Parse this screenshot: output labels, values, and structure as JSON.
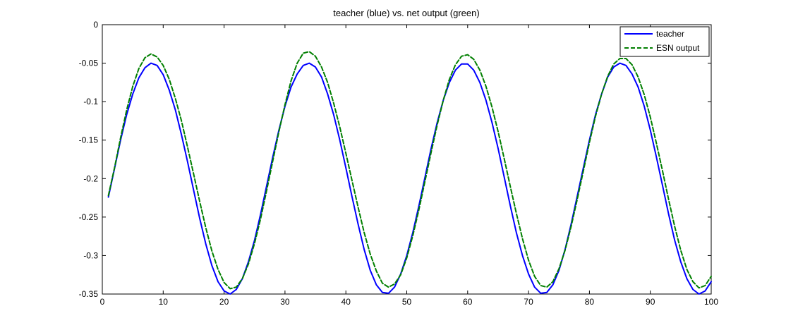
{
  "chart_data": {
    "type": "line",
    "title": "teacher (blue) vs. net output (green)",
    "xlabel": "",
    "ylabel": "",
    "xlim": [
      0,
      100
    ],
    "ylim": [
      -0.35,
      0
    ],
    "xticks": [
      "10",
      "20",
      "30",
      "40",
      "50",
      "60",
      "70",
      "80",
      "90",
      "100"
    ],
    "yticks": [
      "0",
      "-0.05",
      "-0.1",
      "-0.15",
      "-0.2",
      "-0.25",
      "-0.3",
      "-0.35"
    ],
    "x_zero_label": "0",
    "grid": false,
    "legend_position": "top-right",
    "series": [
      {
        "name": "teacher",
        "color": "#0000ff",
        "dash": "solid",
        "x": [
          1,
          2,
          3,
          4,
          5,
          6,
          7,
          8,
          9,
          10,
          11,
          12,
          13,
          14,
          15,
          16,
          17,
          18,
          19,
          20,
          21,
          22,
          23,
          24,
          25,
          26,
          27,
          28,
          29,
          30,
          31,
          32,
          33,
          34,
          35,
          36,
          37,
          38,
          39,
          40,
          41,
          42,
          43,
          44,
          45,
          46,
          47,
          48,
          49,
          50,
          51,
          52,
          53,
          54,
          55,
          56,
          57,
          58,
          59,
          60,
          61,
          62,
          63,
          64,
          65,
          66,
          67,
          68,
          69,
          70,
          71,
          72,
          73,
          74,
          75,
          76,
          77,
          78,
          79,
          80,
          81,
          82,
          83,
          84,
          85,
          86,
          87,
          88,
          89,
          90,
          91,
          92,
          93,
          94,
          95,
          96,
          97,
          98,
          99,
          100
        ],
        "values": [
          -0.224,
          -0.187,
          -0.15,
          -0.117,
          -0.09,
          -0.069,
          -0.056,
          -0.05,
          -0.053,
          -0.065,
          -0.085,
          -0.111,
          -0.143,
          -0.178,
          -0.215,
          -0.252,
          -0.285,
          -0.313,
          -0.334,
          -0.346,
          -0.35,
          -0.344,
          -0.33,
          -0.308,
          -0.28,
          -0.246,
          -0.209,
          -0.172,
          -0.137,
          -0.106,
          -0.081,
          -0.064,
          -0.053,
          -0.05,
          -0.055,
          -0.068,
          -0.09,
          -0.117,
          -0.15,
          -0.186,
          -0.223,
          -0.259,
          -0.292,
          -0.319,
          -0.338,
          -0.348,
          -0.349,
          -0.341,
          -0.324,
          -0.3,
          -0.27,
          -0.235,
          -0.198,
          -0.161,
          -0.127,
          -0.098,
          -0.075,
          -0.059,
          -0.051,
          -0.051,
          -0.059,
          -0.075,
          -0.098,
          -0.127,
          -0.161,
          -0.198,
          -0.235,
          -0.27,
          -0.3,
          -0.324,
          -0.341,
          -0.349,
          -0.348,
          -0.338,
          -0.319,
          -0.292,
          -0.259,
          -0.223,
          -0.186,
          -0.15,
          -0.117,
          -0.09,
          -0.068,
          -0.055,
          -0.05,
          -0.053,
          -0.064,
          -0.081,
          -0.106,
          -0.137,
          -0.172,
          -0.209,
          -0.246,
          -0.28,
          -0.308,
          -0.33,
          -0.344,
          -0.35,
          -0.346,
          -0.334
        ]
      },
      {
        "name": "ESN output",
        "color": "#007f00",
        "dash": "dashed",
        "x": [
          1,
          2,
          3,
          4,
          5,
          6,
          7,
          8,
          9,
          10,
          11,
          12,
          13,
          14,
          15,
          16,
          17,
          18,
          19,
          20,
          21,
          22,
          23,
          24,
          25,
          26,
          27,
          28,
          29,
          30,
          31,
          32,
          33,
          34,
          35,
          36,
          37,
          38,
          39,
          40,
          41,
          42,
          43,
          44,
          45,
          46,
          47,
          48,
          49,
          50,
          51,
          52,
          53,
          54,
          55,
          56,
          57,
          58,
          59,
          60,
          61,
          62,
          63,
          64,
          65,
          66,
          67,
          68,
          69,
          70,
          71,
          72,
          73,
          74,
          75,
          76,
          77,
          78,
          79,
          80,
          81,
          82,
          83,
          84,
          85,
          86,
          87,
          88,
          89,
          90,
          91,
          92,
          93,
          94,
          95,
          96,
          97,
          98,
          99,
          100
        ],
        "values": [
          -0.222,
          -0.186,
          -0.147,
          -0.111,
          -0.08,
          -0.057,
          -0.043,
          -0.038,
          -0.042,
          -0.053,
          -0.071,
          -0.096,
          -0.125,
          -0.159,
          -0.194,
          -0.23,
          -0.264,
          -0.294,
          -0.318,
          -0.335,
          -0.343,
          -0.341,
          -0.33,
          -0.311,
          -0.284,
          -0.252,
          -0.215,
          -0.177,
          -0.139,
          -0.104,
          -0.073,
          -0.05,
          -0.037,
          -0.035,
          -0.041,
          -0.055,
          -0.075,
          -0.102,
          -0.133,
          -0.167,
          -0.202,
          -0.237,
          -0.27,
          -0.298,
          -0.32,
          -0.336,
          -0.341,
          -0.337,
          -0.325,
          -0.303,
          -0.274,
          -0.24,
          -0.203,
          -0.166,
          -0.13,
          -0.098,
          -0.071,
          -0.052,
          -0.041,
          -0.039,
          -0.045,
          -0.059,
          -0.08,
          -0.107,
          -0.139,
          -0.174,
          -0.21,
          -0.245,
          -0.278,
          -0.306,
          -0.327,
          -0.339,
          -0.341,
          -0.334,
          -0.317,
          -0.293,
          -0.262,
          -0.227,
          -0.19,
          -0.153,
          -0.119,
          -0.09,
          -0.067,
          -0.051,
          -0.044,
          -0.044,
          -0.052,
          -0.068,
          -0.091,
          -0.12,
          -0.154,
          -0.19,
          -0.227,
          -0.262,
          -0.293,
          -0.318,
          -0.334,
          -0.342,
          -0.339,
          -0.327
        ]
      }
    ]
  }
}
